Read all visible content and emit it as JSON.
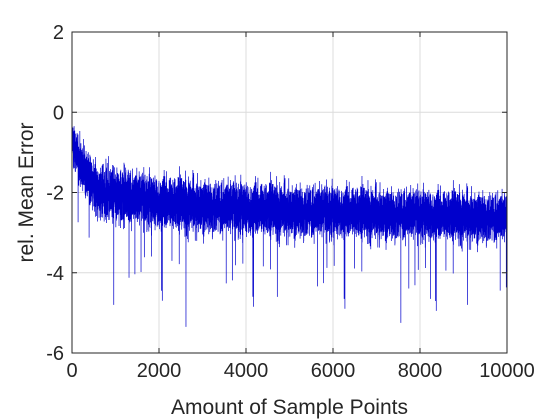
{
  "chart_data": {
    "type": "line",
    "title": "",
    "xlabel": "Amount of Sample Points",
    "ylabel": "rel. Mean Error",
    "xlim": [
      0,
      10000
    ],
    "ylim": [
      -6,
      2
    ],
    "xticks": [
      0,
      2000,
      4000,
      6000,
      8000,
      10000
    ],
    "yticks": [
      2,
      0,
      -2,
      -4,
      -6
    ],
    "grid": true,
    "series_color": "#0000cc",
    "series": [
      {
        "name": "",
        "description": "noisy signal sampled at every sample point",
        "x_step": 1,
        "mean_envelope": [
          {
            "x": 0,
            "y": 0.0
          },
          {
            "x": 50,
            "y": -1.3
          },
          {
            "x": 500,
            "y": -1.9
          },
          {
            "x": 2000,
            "y": -2.15
          },
          {
            "x": 4000,
            "y": -2.35
          },
          {
            "x": 6000,
            "y": -2.45
          },
          {
            "x": 8000,
            "y": -2.5
          },
          {
            "x": 10000,
            "y": -2.55
          }
        ],
        "upper_envelope": [
          {
            "x": 0,
            "y": 0.0
          },
          {
            "x": 500,
            "y": -0.9
          },
          {
            "x": 2000,
            "y": -1.2
          },
          {
            "x": 4000,
            "y": -1.35
          },
          {
            "x": 6000,
            "y": -1.45
          },
          {
            "x": 8000,
            "y": -1.55
          },
          {
            "x": 10000,
            "y": -1.65
          }
        ],
        "lower_envelope": [
          {
            "x": 0,
            "y": -1.5
          },
          {
            "x": 500,
            "y": -3.0
          },
          {
            "x": 2000,
            "y": -3.3
          },
          {
            "x": 4000,
            "y": -3.45
          },
          {
            "x": 6000,
            "y": -3.5
          },
          {
            "x": 8000,
            "y": -3.55
          },
          {
            "x": 10000,
            "y": -3.6
          }
        ],
        "notable_minima": [
          {
            "x": 960,
            "y": -4.8
          },
          {
            "x": 2620,
            "y": -5.35
          },
          {
            "x": 7560,
            "y": -5.25
          },
          {
            "x": 9090,
            "y": -4.8
          },
          {
            "x": 4720,
            "y": -4.6
          },
          {
            "x": 8240,
            "y": -4.65
          }
        ]
      }
    ]
  }
}
